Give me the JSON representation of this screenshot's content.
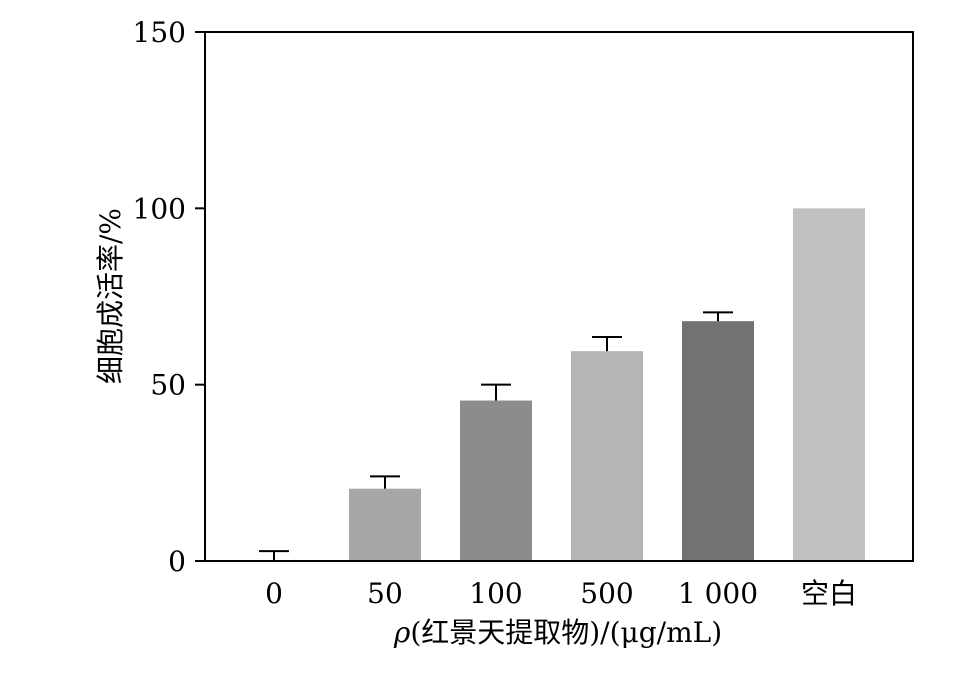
{
  "chart_data": {
    "type": "bar",
    "title": "",
    "xlabel": "ρ(红景天提取物)/(μg/mL)",
    "xlabel_symbol": "ρ",
    "xlabel_rest": "(红景天提取物)/(μg/mL)",
    "ylabel": "细胞成活率/%",
    "ylim": [
      0,
      150
    ],
    "yticks": [
      "0",
      "50",
      "100",
      "150"
    ],
    "ytick_values": [
      0,
      50,
      100,
      150
    ],
    "categories": [
      "0",
      "50",
      "100",
      "500",
      "1 000",
      "空白"
    ],
    "values": [
      0,
      20.5,
      45.5,
      59.5,
      68,
      100
    ],
    "errors": [
      2.8,
      3.5,
      4.5,
      4.0,
      2.5,
      0
    ],
    "bar_colors": [
      "#a6a7a6",
      "#a6a7a6",
      "#8c8c8c",
      "#b5b5b5",
      "#727272",
      "#c0c1c0"
    ],
    "grid": false,
    "legend": "none"
  }
}
